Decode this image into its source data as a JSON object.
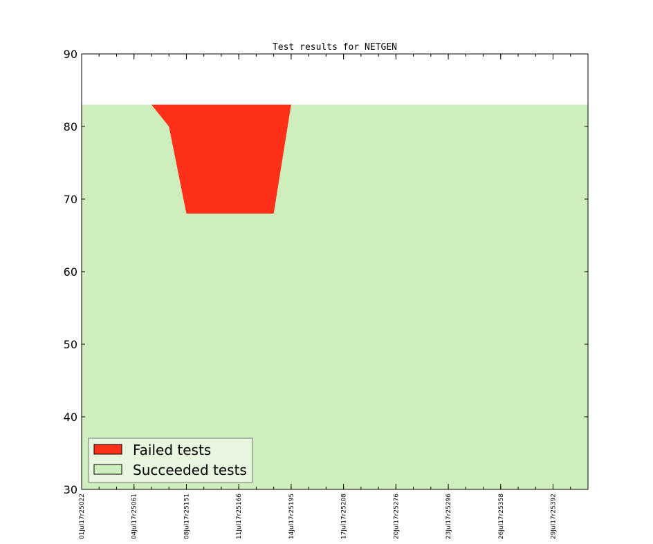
{
  "chart_data": {
    "type": "area",
    "title": "Test results for NETGEN",
    "xlabel": "",
    "ylabel": "",
    "ylim": [
      30,
      90
    ],
    "yticks": [
      30,
      40,
      50,
      60,
      70,
      80,
      90
    ],
    "xlim": [
      0,
      29
    ],
    "xtick_labels": [
      "01Jul17r25022",
      "04Jul17r25061",
      "08Jul17r25151",
      "11Jul17r25166",
      "14Jul17r25195",
      "17Jul17r25208",
      "20Jul17r25276",
      "23Jul17r25296",
      "26Jul17r25358",
      "29Jul17r25392"
    ],
    "xtick_positions": [
      0,
      3,
      6,
      9,
      12,
      15,
      18,
      21,
      24,
      27
    ],
    "grid": false,
    "legend_position": "lower-left",
    "series": [
      {
        "name": "Failed tests",
        "color": "#ff3019",
        "upper": 83,
        "points": [
          {
            "x": 4,
            "y": 83
          },
          {
            "x": 5,
            "y": 80
          },
          {
            "x": 6,
            "y": 68
          },
          {
            "x": 11,
            "y": 68
          },
          {
            "x": 12,
            "y": 83
          }
        ]
      },
      {
        "name": "Succeeded tests",
        "color": "#cfeebd",
        "values": [
          83,
          83,
          83,
          83,
          83,
          80,
          68,
          68,
          68,
          68,
          68,
          68,
          83,
          83,
          83,
          83,
          83,
          83,
          83,
          83,
          83,
          83,
          83,
          83,
          83,
          83,
          83,
          83,
          83,
          83
        ]
      }
    ]
  }
}
